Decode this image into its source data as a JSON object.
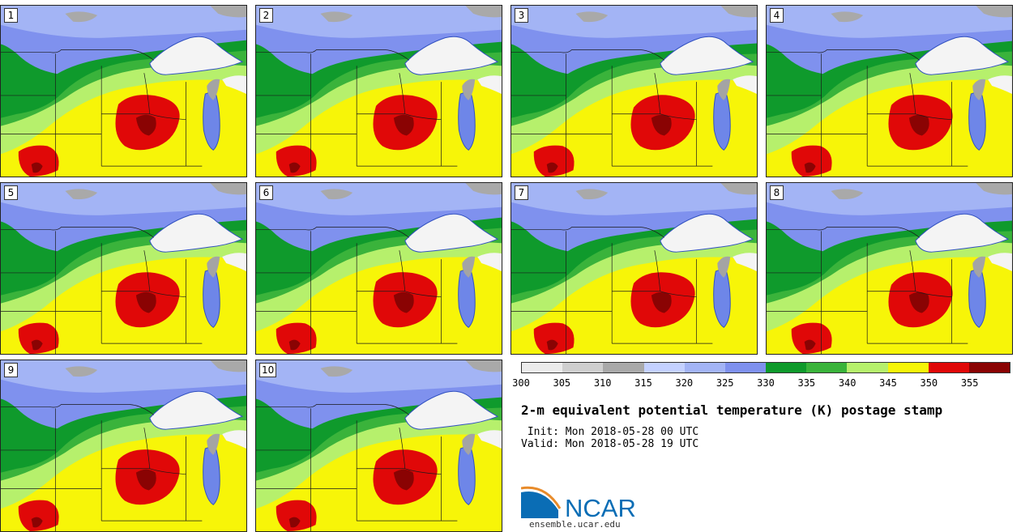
{
  "panels": [
    {
      "label": "1"
    },
    {
      "label": "2"
    },
    {
      "label": "3"
    },
    {
      "label": "4"
    },
    {
      "label": "5"
    },
    {
      "label": "6"
    },
    {
      "label": "7"
    },
    {
      "label": "8"
    },
    {
      "label": "9"
    },
    {
      "label": "10"
    }
  ],
  "colorbar": {
    "colors": [
      "#ececec",
      "#cfcfcf",
      "#a9a9a9",
      "#c4d1ff",
      "#a3b4f5",
      "#7f91ee",
      "#0f9a2c",
      "#3ab33b",
      "#b6f06c",
      "#f7f508",
      "#e00808",
      "#8a0303"
    ],
    "bounds": [
      300,
      305,
      310,
      315,
      320,
      325,
      330,
      335,
      340,
      345,
      350,
      355,
      360
    ],
    "tick_labels": [
      "300",
      "305",
      "310",
      "315",
      "320",
      "325",
      "330",
      "335",
      "340",
      "345",
      "350",
      "355"
    ]
  },
  "map_colors": {
    "water": "#6e86e8",
    "lake_ice": "#f4f4f4",
    "lake_shade": "#a4a4a4",
    "cold_high": "#a3b4f5",
    "cold_low": "#7f91ee",
    "gray": "#a9a9a9",
    "green_dark": "#0f9a2c",
    "green": "#3ab33b",
    "light_green": "#b6f06c",
    "yellow": "#f7f508",
    "red": "#e00808",
    "dark_red": "#8a0303",
    "border": "#1a1a1a"
  },
  "title": "2-m equivalent potential temperature (K) postage stamp",
  "init": " Init: Mon 2018-05-28 00 UTC",
  "valid": "Valid: Mon 2018-05-28 19 UTC",
  "logo": {
    "text": "NCAR",
    "url": "ensemble.ucar.edu",
    "blue": "#0a6db5",
    "orange": "#e88b2a"
  }
}
